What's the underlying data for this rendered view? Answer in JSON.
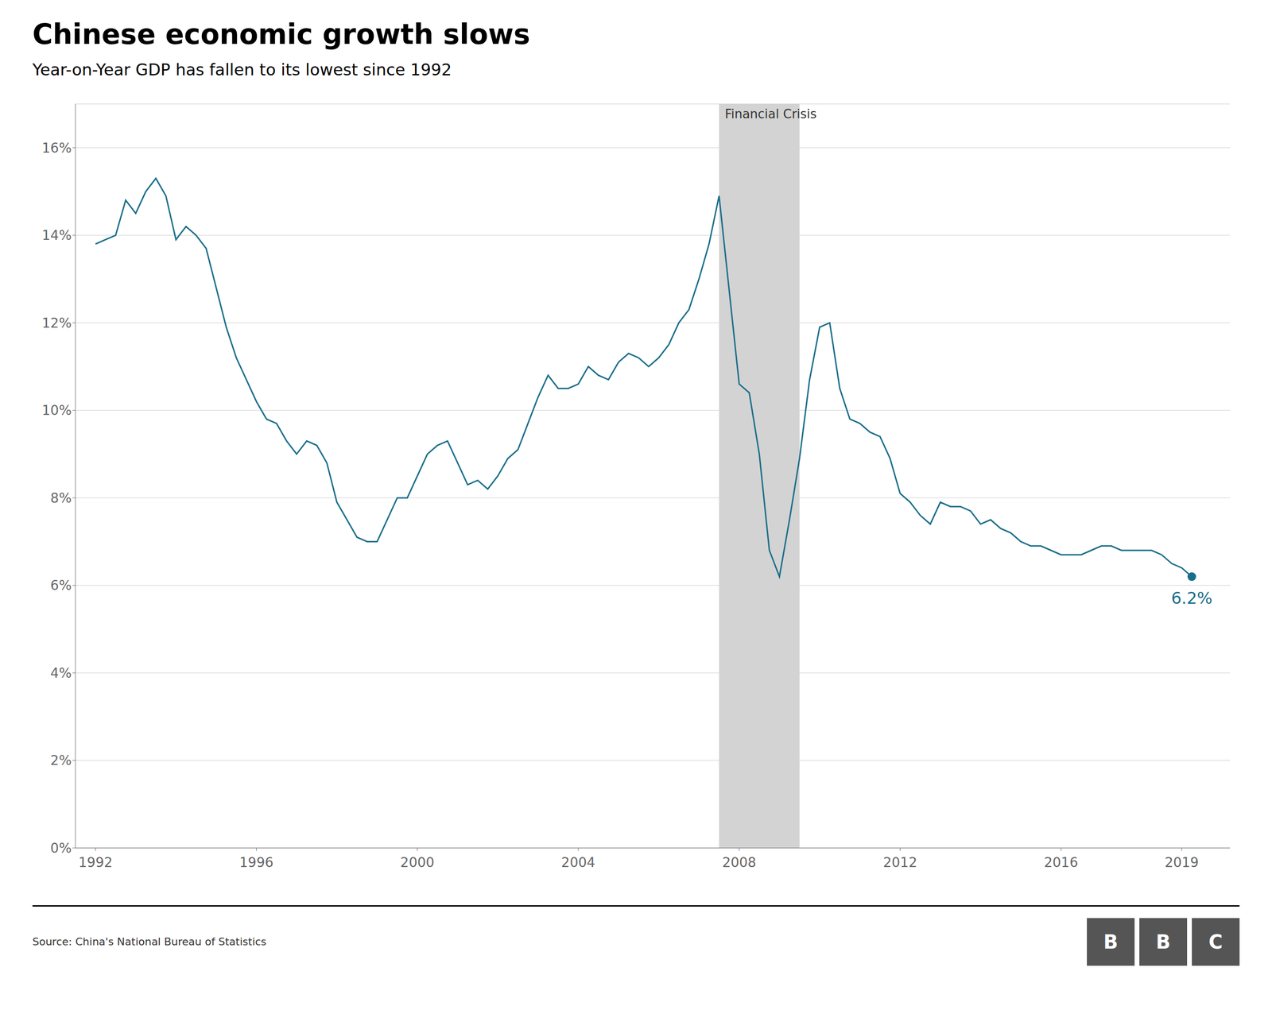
{
  "chart_data": {
    "type": "line",
    "title": "Chinese economic growth slows",
    "subtitle": "Year-on-Year GDP has fallen to its lowest since 1992",
    "source": "Source: China's National Bureau of Statistics",
    "color": "#1a6e8a",
    "grid": true,
    "annotations": [
      {
        "text": "6.2%",
        "color": "#1a6e8a"
      }
    ],
    "spans": [
      {
        "label": "Financial Crisis",
        "start": 2007.5,
        "end": 2009.5,
        "color": "#d3d3d3"
      }
    ],
    "logo": {
      "letters": [
        "B",
        "B",
        "C"
      ],
      "color": "#555555"
    },
    "xlim": [
      1991.5,
      2020.2
    ],
    "xticks": [
      1992,
      1996,
      2000,
      2004,
      2008,
      2012,
      2016,
      2019
    ],
    "ylim": [
      0,
      17
    ],
    "yticks": [
      {
        "value": 0,
        "label": "0%"
      },
      {
        "value": 2,
        "label": "2%"
      },
      {
        "value": 4,
        "label": "4%"
      },
      {
        "value": 6,
        "label": "6%"
      },
      {
        "value": 8,
        "label": "8%"
      },
      {
        "value": 10,
        "label": "10%"
      },
      {
        "value": 12,
        "label": "12%"
      },
      {
        "value": 14,
        "label": "14%"
      },
      {
        "value": 16,
        "label": "16%"
      }
    ],
    "x": [
      1992.0,
      1992.25,
      1992.5,
      1992.75,
      1993.0,
      1993.25,
      1993.5,
      1993.75,
      1994.0,
      1994.25,
      1994.5,
      1994.75,
      1995.0,
      1995.25,
      1995.5,
      1995.75,
      1996.0,
      1996.25,
      1996.5,
      1996.75,
      1997.0,
      1997.25,
      1997.5,
      1997.75,
      1998.0,
      1998.25,
      1998.5,
      1998.75,
      1999.0,
      1999.25,
      1999.5,
      1999.75,
      2000.0,
      2000.25,
      2000.5,
      2000.75,
      2001.0,
      2001.25,
      2001.5,
      2001.75,
      2002.0,
      2002.25,
      2002.5,
      2002.75,
      2003.0,
      2003.25,
      2003.5,
      2003.75,
      2004.0,
      2004.25,
      2004.5,
      2004.75,
      2005.0,
      2005.25,
      2005.5,
      2005.75,
      2006.0,
      2006.25,
      2006.5,
      2006.75,
      2007.0,
      2007.25,
      2007.5,
      2008.0,
      2008.25,
      2008.5,
      2008.75,
      2009.0,
      2009.25,
      2009.5,
      2009.75,
      2010.0,
      2010.25,
      2010.5,
      2010.75,
      2011.0,
      2011.25,
      2011.5,
      2011.75,
      2012.0,
      2012.25,
      2012.5,
      2012.75,
      2013.0,
      2013.25,
      2013.5,
      2013.75,
      2014.0,
      2014.25,
      2014.5,
      2014.75,
      2015.0,
      2015.25,
      2015.5,
      2015.75,
      2016.0,
      2016.25,
      2016.5,
      2016.75,
      2017.0,
      2017.25,
      2017.5,
      2017.75,
      2018.0,
      2018.25,
      2018.5,
      2018.75,
      2019.0,
      2019.25
    ],
    "values": [
      13.8,
      13.9,
      14.0,
      14.8,
      14.5,
      15.0,
      15.3,
      14.9,
      13.9,
      14.2,
      14.0,
      13.7,
      12.8,
      11.9,
      11.2,
      10.7,
      10.2,
      9.8,
      9.7,
      9.3,
      9.0,
      9.3,
      9.2,
      8.8,
      7.9,
      7.5,
      7.1,
      7.0,
      7.0,
      7.5,
      8.0,
      8.0,
      8.5,
      9.0,
      9.2,
      9.3,
      8.8,
      8.3,
      8.4,
      8.2,
      8.5,
      8.9,
      9.1,
      9.7,
      10.3,
      10.8,
      10.5,
      10.5,
      10.6,
      11.0,
      10.8,
      10.7,
      11.1,
      11.3,
      11.2,
      11.0,
      11.2,
      11.5,
      12.0,
      12.3,
      13.0,
      13.8,
      14.9,
      10.6,
      10.4,
      9.0,
      6.8,
      6.2,
      7.5,
      8.9,
      10.7,
      11.9,
      12.0,
      10.5,
      9.8,
      9.7,
      9.5,
      9.4,
      8.9,
      8.1,
      7.9,
      7.6,
      7.4,
      7.9,
      7.8,
      7.8,
      7.7,
      7.4,
      7.5,
      7.3,
      7.2,
      7.0,
      6.9,
      6.9,
      6.8,
      6.7,
      6.7,
      6.7,
      6.8,
      6.9,
      6.9,
      6.8,
      6.8,
      6.8,
      6.8,
      6.7,
      6.5,
      6.4,
      6.2
    ]
  }
}
